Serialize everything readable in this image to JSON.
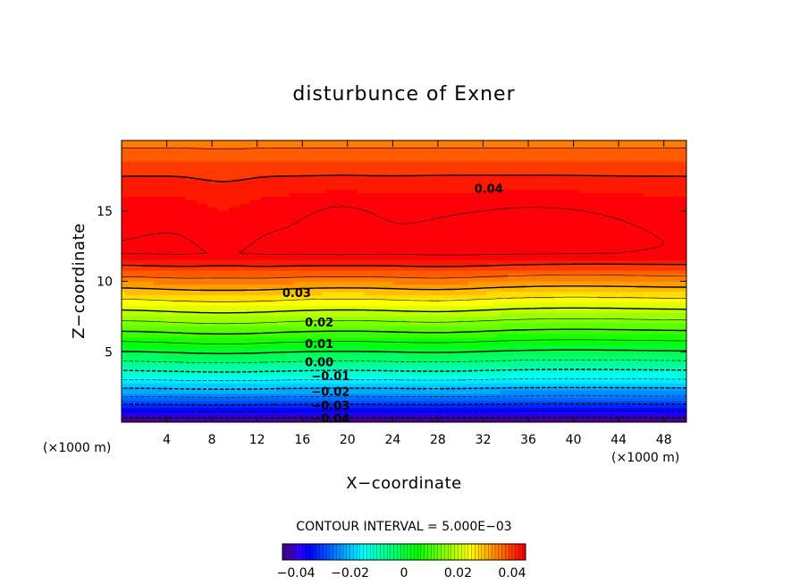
{
  "chart_data": {
    "type": "contour",
    "title": "disturbunce of Exner",
    "xlabel": "X−coordinate",
    "ylabel": "Z−coordinate",
    "x_unit_left": "(×1000 m)",
    "x_unit_right": "(×1000 m)",
    "xlim": [
      0,
      50
    ],
    "ylim": [
      0,
      20
    ],
    "x_ticks": [
      4,
      8,
      12,
      16,
      20,
      24,
      28,
      32,
      36,
      40,
      44,
      48
    ],
    "y_ticks": [
      5,
      10,
      15
    ],
    "contour_interval_text": "CONTOUR INTERVAL = 5.000E−03",
    "colorbar": {
      "range": [
        -0.045,
        0.045
      ],
      "ticks": [
        "−0.04",
        "−0.02",
        "0",
        "0.02",
        "0.04"
      ],
      "tick_values": [
        -0.04,
        -0.02,
        0,
        0.02,
        0.04
      ]
    },
    "contour_labels": [
      {
        "text": "0.04",
        "x": 32.5,
        "z": 16.6
      },
      {
        "text": "0.03",
        "x": 15.5,
        "z": 9.2
      },
      {
        "text": "0.02",
        "x": 17.5,
        "z": 7.1
      },
      {
        "text": "0.01",
        "x": 17.5,
        "z": 5.6
      },
      {
        "text": "0.00",
        "x": 17.5,
        "z": 4.3
      },
      {
        "text": "−0.01",
        "x": 18.5,
        "z": 3.3
      },
      {
        "text": "−0.02",
        "x": 18.5,
        "z": 2.2
      },
      {
        "text": "−0.03",
        "x": 18.5,
        "z": 1.2
      },
      {
        "text": "−0.04",
        "x": 18.5,
        "z": 0.3
      }
    ],
    "field_description": "Exner pressure disturbance increasing with height from about -0.045 at z=0 to about 0.045 in closed maxima near z=14, decreasing slightly above; gentle wave undulation with crests near x=9 and x=28."
  }
}
